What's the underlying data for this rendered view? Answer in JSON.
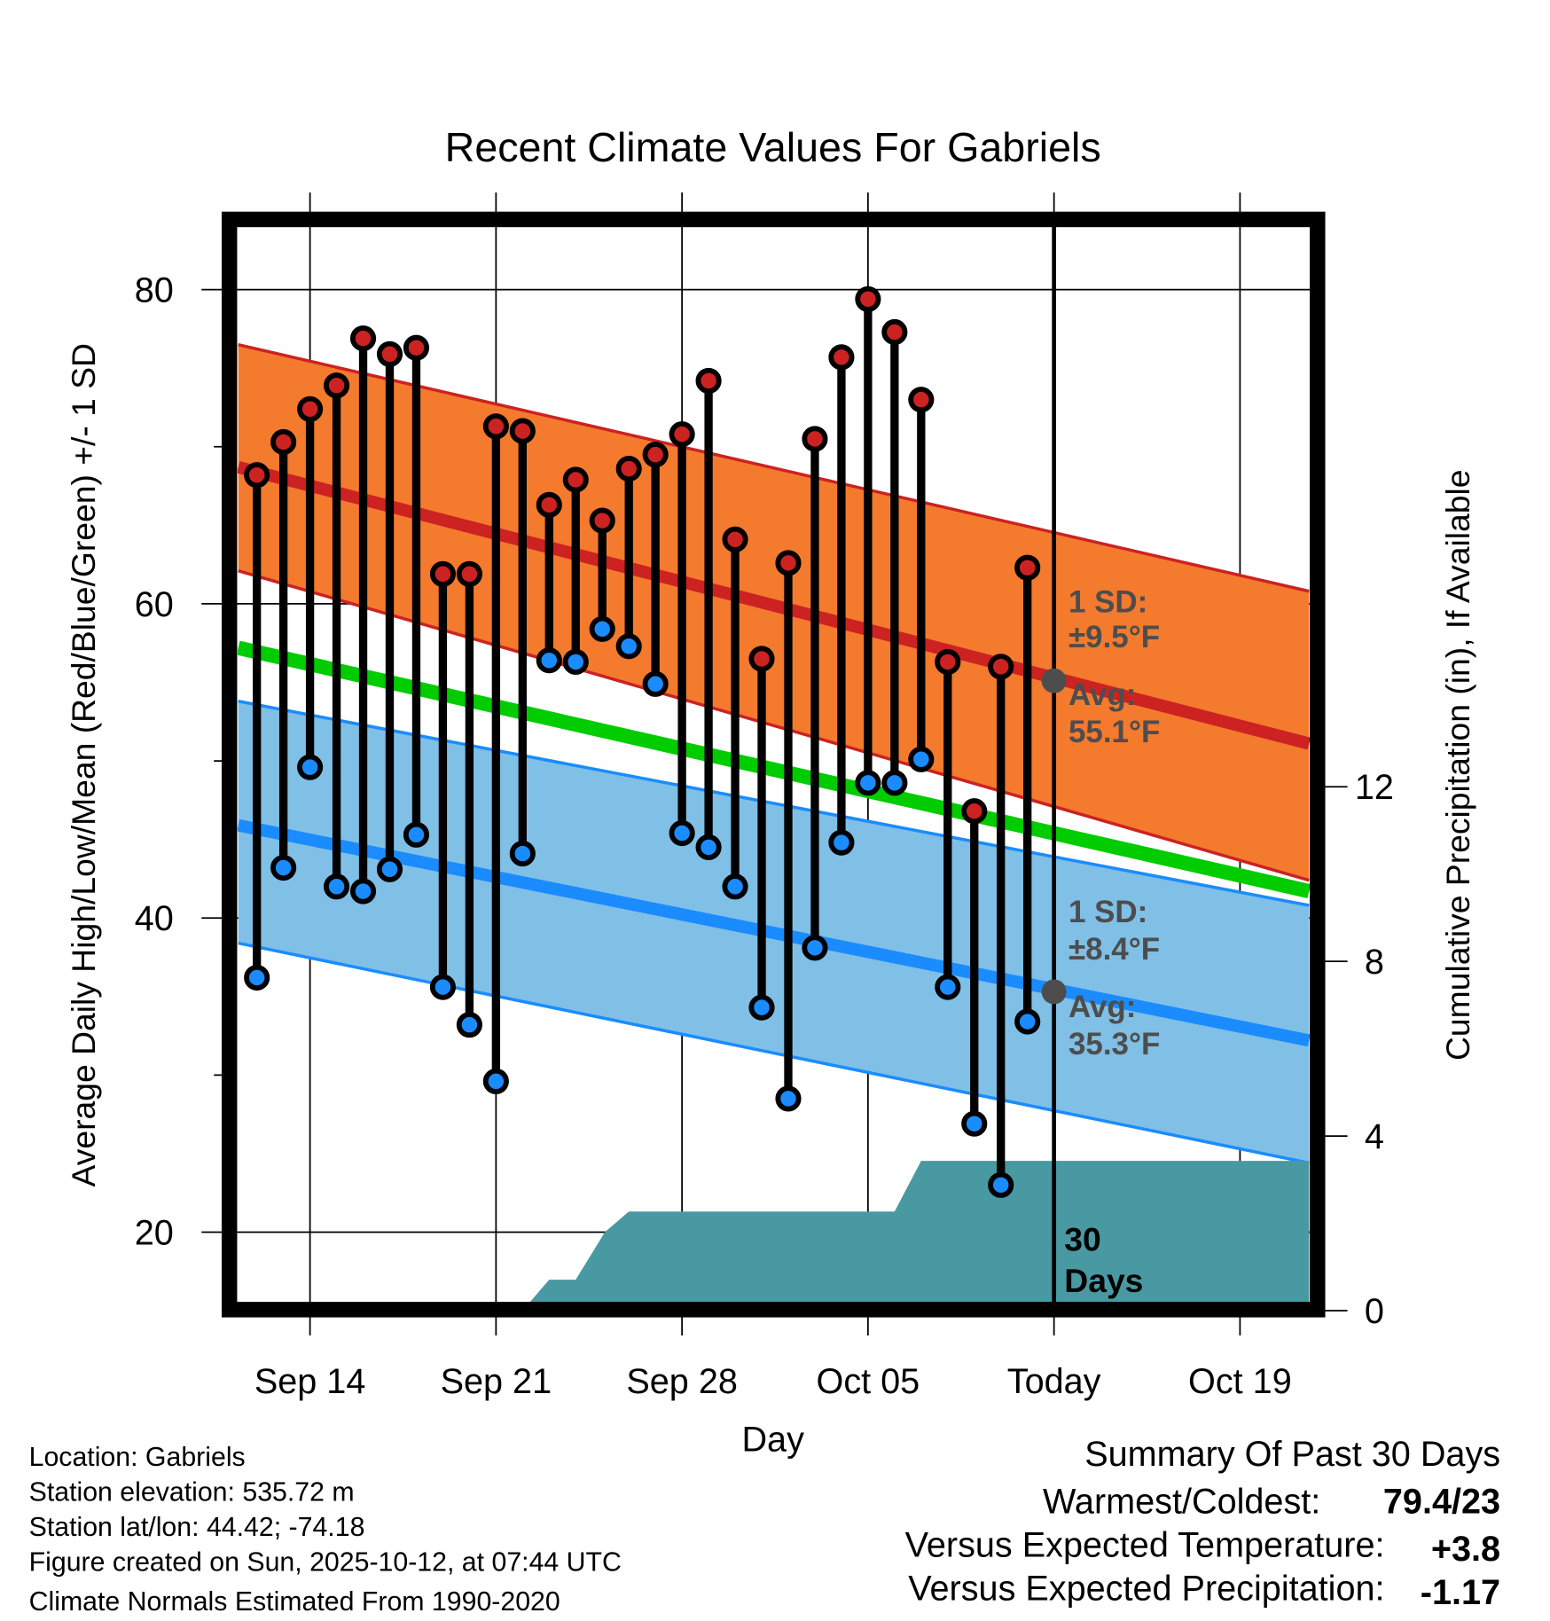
{
  "chart_data": {
    "type": "line",
    "title": "Recent Climate Values For Gabriels",
    "xlabel": "Day",
    "ylabel": "Average Daily High/Low/Mean (Red/Blue/Green) +/- 1 SD",
    "ylabel_right": "Cumulative Precipitation (in), If Available",
    "ylim": [
      15.4,
      84.1
    ],
    "y_ticks": [
      "80",
      "60",
      "40",
      "20"
    ],
    "y_tick_values": [
      80,
      60,
      40,
      20
    ],
    "y_minor_ticks": [
      70,
      50,
      30
    ],
    "y_right_ticks": [
      "12",
      "8",
      "4",
      "0"
    ],
    "y_right_tick_values": [
      12,
      8,
      4,
      0
    ],
    "x_ticks": [
      "Sep 14",
      "Sep 21",
      "Sep 28",
      "Oct 05",
      "Today",
      "Oct 19"
    ],
    "x_tick_days": [
      0,
      7,
      14,
      21,
      28,
      35
    ],
    "x_range_days": [
      -2.7,
      37.6
    ],
    "x_day_zero": "Sep 14",
    "grid": true,
    "days": [
      -2,
      -1,
      0,
      1,
      2,
      3,
      4,
      5,
      6,
      7,
      8,
      9,
      10,
      11,
      12,
      13,
      14,
      15,
      16,
      17,
      18,
      19,
      20,
      21,
      22,
      23,
      24,
      25,
      26,
      27
    ],
    "series": [
      {
        "name": "Daily High",
        "color": "#cc2222",
        "values": [
          68.2,
          70.3,
          72.4,
          73.9,
          76.9,
          75.9,
          76.3,
          61.9,
          61.9,
          71.3,
          71.0,
          66.3,
          67.9,
          65.3,
          68.6,
          69.5,
          70.8,
          74.2,
          64.1,
          56.5,
          62.6,
          70.5,
          75.7,
          79.4,
          77.3,
          73.0,
          56.3,
          46.8,
          56.0,
          62.3
        ]
      },
      {
        "name": "Daily Low",
        "color": "#1a8cff",
        "values": [
          36.2,
          43.2,
          49.6,
          42.0,
          41.7,
          43.1,
          45.3,
          35.6,
          33.2,
          29.6,
          44.1,
          56.4,
          56.3,
          58.4,
          57.3,
          54.9,
          45.4,
          44.5,
          42.0,
          34.3,
          28.5,
          38.1,
          44.8,
          48.6,
          48.6,
          50.1,
          35.6,
          26.9,
          23.0,
          33.4
        ]
      }
    ],
    "normals": {
      "high_avg": [
        68.7,
        51.1
      ],
      "high_band_upper": [
        76.5,
        60.8
      ],
      "high_band_lower": [
        62.1,
        42.4
      ],
      "mean_avg": [
        57.2,
        41.7
      ],
      "low_avg": [
        45.9,
        32.2
      ],
      "low_band_upper": [
        53.8,
        40.8
      ],
      "low_band_lower": [
        38.4,
        24.4
      ]
    },
    "precip_cumulative": [
      [
        -2.7,
        0
      ],
      [
        8.0,
        0
      ],
      [
        9.0,
        0.71
      ],
      [
        10.0,
        0.71
      ],
      [
        11.1,
        1.8
      ],
      [
        12.0,
        2.27
      ],
      [
        22.0,
        2.27
      ],
      [
        23.0,
        3.43
      ],
      [
        37.6,
        3.43
      ]
    ],
    "annotations": {
      "high_sd_line1": "1 SD:",
      "high_sd_line2": "±9.5°F",
      "high_avg_line1": "Avg:",
      "high_avg_line2": "55.1°F",
      "low_sd_line1": "1 SD:",
      "low_sd_line2": "±8.4°F",
      "low_avg_line1": "Avg:",
      "low_avg_line2": "35.3°F",
      "today_high_avg": 55.1,
      "today_low_avg": 35.3,
      "period_line1": "30",
      "period_line2": "Days"
    }
  },
  "footer": {
    "location": "Location: Gabriels",
    "elevation": "Station elevation: 535.72 m",
    "latlon": "Station lat/lon: 44.42; -74.18",
    "created": "Figure created on Sun, 2025-10-12, at 07:44 UTC",
    "normals": "Climate Normals Estimated From 1990-2020"
  },
  "summary": {
    "title": "Summary Of Past 30 Days",
    "warm_cold_label": "Warmest/Coldest:",
    "warm_cold_value": "79.4/23",
    "temp_label": "Versus Expected Temperature:",
    "temp_value": "+3.8",
    "temp_color": "#cc2222",
    "precip_label": "Versus Expected Precipitation:",
    "precip_value": "-1.17",
    "precip_color": "#a0522d"
  }
}
